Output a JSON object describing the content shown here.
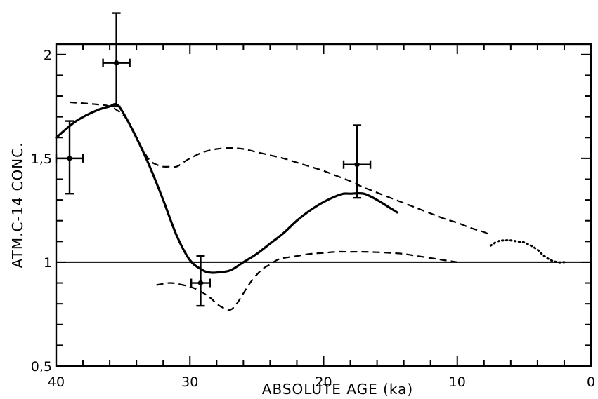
{
  "chart_data": {
    "type": "line",
    "xlabel": "ABSOLUTE AGE (ka)",
    "ylabel": "ATM.C-14 CONC.",
    "xlim": [
      40,
      0
    ],
    "ylim": [
      0.5,
      2.05
    ],
    "x_reversed": true,
    "x_ticks": [
      40,
      30,
      20,
      10,
      0
    ],
    "x_tick_labels": [
      "40",
      "30",
      "20",
      "10",
      "0"
    ],
    "x_minor_step": 2,
    "y_ticks": [
      0.5,
      1,
      1.5,
      2
    ],
    "y_tick_labels": [
      "0,5",
      "1",
      "1,5",
      "2"
    ],
    "y_minor_step": 0.1,
    "reference_line": {
      "y": 1.0
    },
    "data_points": [
      {
        "x": 39.0,
        "y": 1.5,
        "xerr": 1.0,
        "yerr_low": 0.17,
        "yerr_high": 0.18
      },
      {
        "x": 35.5,
        "y": 1.96,
        "xerr": 1.0,
        "yerr_low": 0.21,
        "yerr_high": 0.24
      },
      {
        "x": 29.2,
        "y": 0.9,
        "xerr": 0.7,
        "yerr_low": 0.11,
        "yerr_high": 0.13
      },
      {
        "x": 17.5,
        "y": 1.47,
        "xerr": 1.0,
        "yerr_low": 0.16,
        "yerr_high": 0.19
      }
    ],
    "series": [
      {
        "style": "solid",
        "x": [
          40,
          38.5,
          37,
          36,
          35.5,
          35,
          34,
          33,
          32,
          31,
          30,
          29,
          28.5,
          28,
          27,
          26,
          25,
          24,
          23,
          22,
          21,
          20,
          19,
          18.5,
          18,
          17,
          16,
          15,
          14.5
        ],
        "y": [
          1.6,
          1.68,
          1.73,
          1.75,
          1.76,
          1.72,
          1.6,
          1.46,
          1.3,
          1.13,
          1.01,
          0.96,
          0.95,
          0.95,
          0.96,
          1.0,
          1.04,
          1.09,
          1.14,
          1.2,
          1.25,
          1.29,
          1.32,
          1.33,
          1.33,
          1.33,
          1.3,
          1.26,
          1.24
        ]
      },
      {
        "style": "dashed",
        "x": [
          39,
          37,
          36,
          35,
          34.5,
          34,
          33.5,
          33,
          32.5,
          32,
          31.5,
          31,
          30.5,
          30,
          29,
          28,
          27,
          26,
          25,
          24,
          23,
          22,
          21,
          20,
          19,
          18,
          17,
          16,
          15,
          14,
          13,
          12,
          11,
          10,
          9,
          8,
          7.5
        ],
        "y": [
          1.77,
          1.76,
          1.75,
          1.71,
          1.66,
          1.6,
          1.54,
          1.49,
          1.47,
          1.46,
          1.46,
          1.46,
          1.48,
          1.5,
          1.53,
          1.545,
          1.55,
          1.545,
          1.53,
          1.515,
          1.5,
          1.48,
          1.46,
          1.44,
          1.415,
          1.39,
          1.36,
          1.335,
          1.31,
          1.285,
          1.26,
          1.235,
          1.21,
          1.19,
          1.165,
          1.145,
          1.13
        ]
      },
      {
        "style": "dashed",
        "x": [
          32.5,
          31.5,
          30.5,
          29.5,
          28.5,
          28,
          27.5,
          27,
          26.5,
          26,
          25.5,
          25,
          24.5,
          24,
          23.5,
          23,
          22,
          21,
          20,
          19,
          18,
          17,
          16,
          15,
          14,
          13,
          12,
          11,
          10
        ],
        "y": [
          0.89,
          0.9,
          0.89,
          0.87,
          0.83,
          0.8,
          0.78,
          0.77,
          0.8,
          0.85,
          0.9,
          0.94,
          0.97,
          0.99,
          1.01,
          1.02,
          1.03,
          1.04,
          1.045,
          1.05,
          1.05,
          1.05,
          1.048,
          1.045,
          1.04,
          1.03,
          1.02,
          1.01,
          1.0
        ]
      },
      {
        "style": "dotted",
        "x": [
          7.5,
          7,
          6.5,
          6,
          5.5,
          5,
          4.5,
          4,
          3.5,
          3,
          2.5,
          2
        ],
        "y": [
          1.08,
          1.1,
          1.105,
          1.105,
          1.1,
          1.095,
          1.08,
          1.06,
          1.03,
          1.01,
          1.0,
          1.0
        ]
      }
    ]
  }
}
